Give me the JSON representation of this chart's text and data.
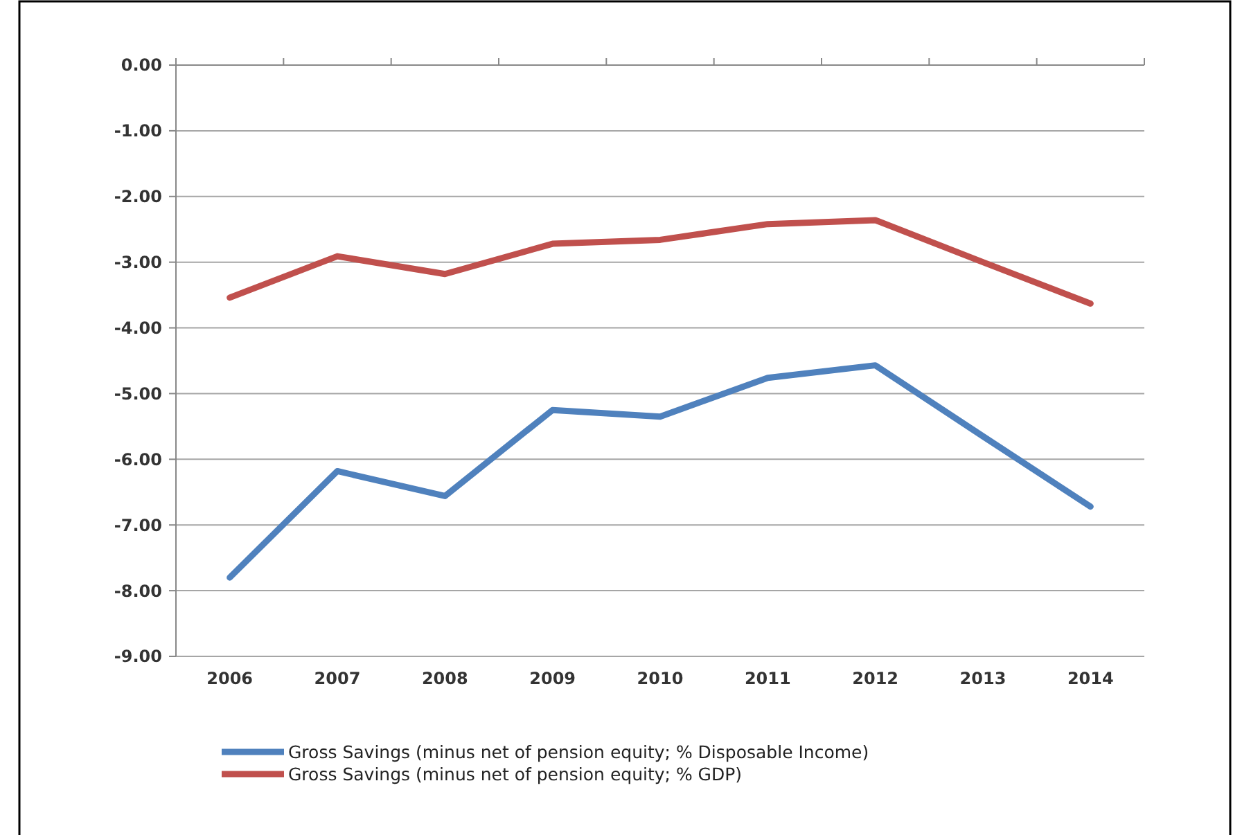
{
  "chart_data": {
    "type": "line",
    "categories": [
      "2006",
      "2007",
      "2008",
      "2009",
      "2010",
      "2011",
      "2012",
      "2013",
      "2014"
    ],
    "series": [
      {
        "name": "Gross Savings (minus net of pension equity; % Disposable Income)",
        "color": "#4f81bd",
        "values": [
          -7.8,
          -6.18,
          -6.56,
          -5.25,
          -5.35,
          -4.76,
          -4.57,
          -5.65,
          -6.72
        ]
      },
      {
        "name": "Gross Savings (minus net of pension equity; % GDP)",
        "color": "#c0504d",
        "values": [
          -3.54,
          -2.91,
          -3.18,
          -2.72,
          -2.66,
          -2.42,
          -2.36,
          -3.0,
          -3.63
        ]
      }
    ],
    "ylim": [
      -9,
      0
    ],
    "yticks": [
      {
        "value": 0,
        "label": "0.00"
      },
      {
        "value": -1,
        "label": "-1.00"
      },
      {
        "value": -2,
        "label": "-2.00"
      },
      {
        "value": -3,
        "label": "-3.00"
      },
      {
        "value": -4,
        "label": "-4.00"
      },
      {
        "value": -5,
        "label": "-5.00"
      },
      {
        "value": -6,
        "label": "-6.00"
      },
      {
        "value": -7,
        "label": "-7.00"
      },
      {
        "value": -8,
        "label": "-8.00"
      },
      {
        "value": -9,
        "label": "-9.00"
      }
    ],
    "grid": "y",
    "legend": "bottom",
    "marker": "none",
    "line_style": "solid"
  }
}
